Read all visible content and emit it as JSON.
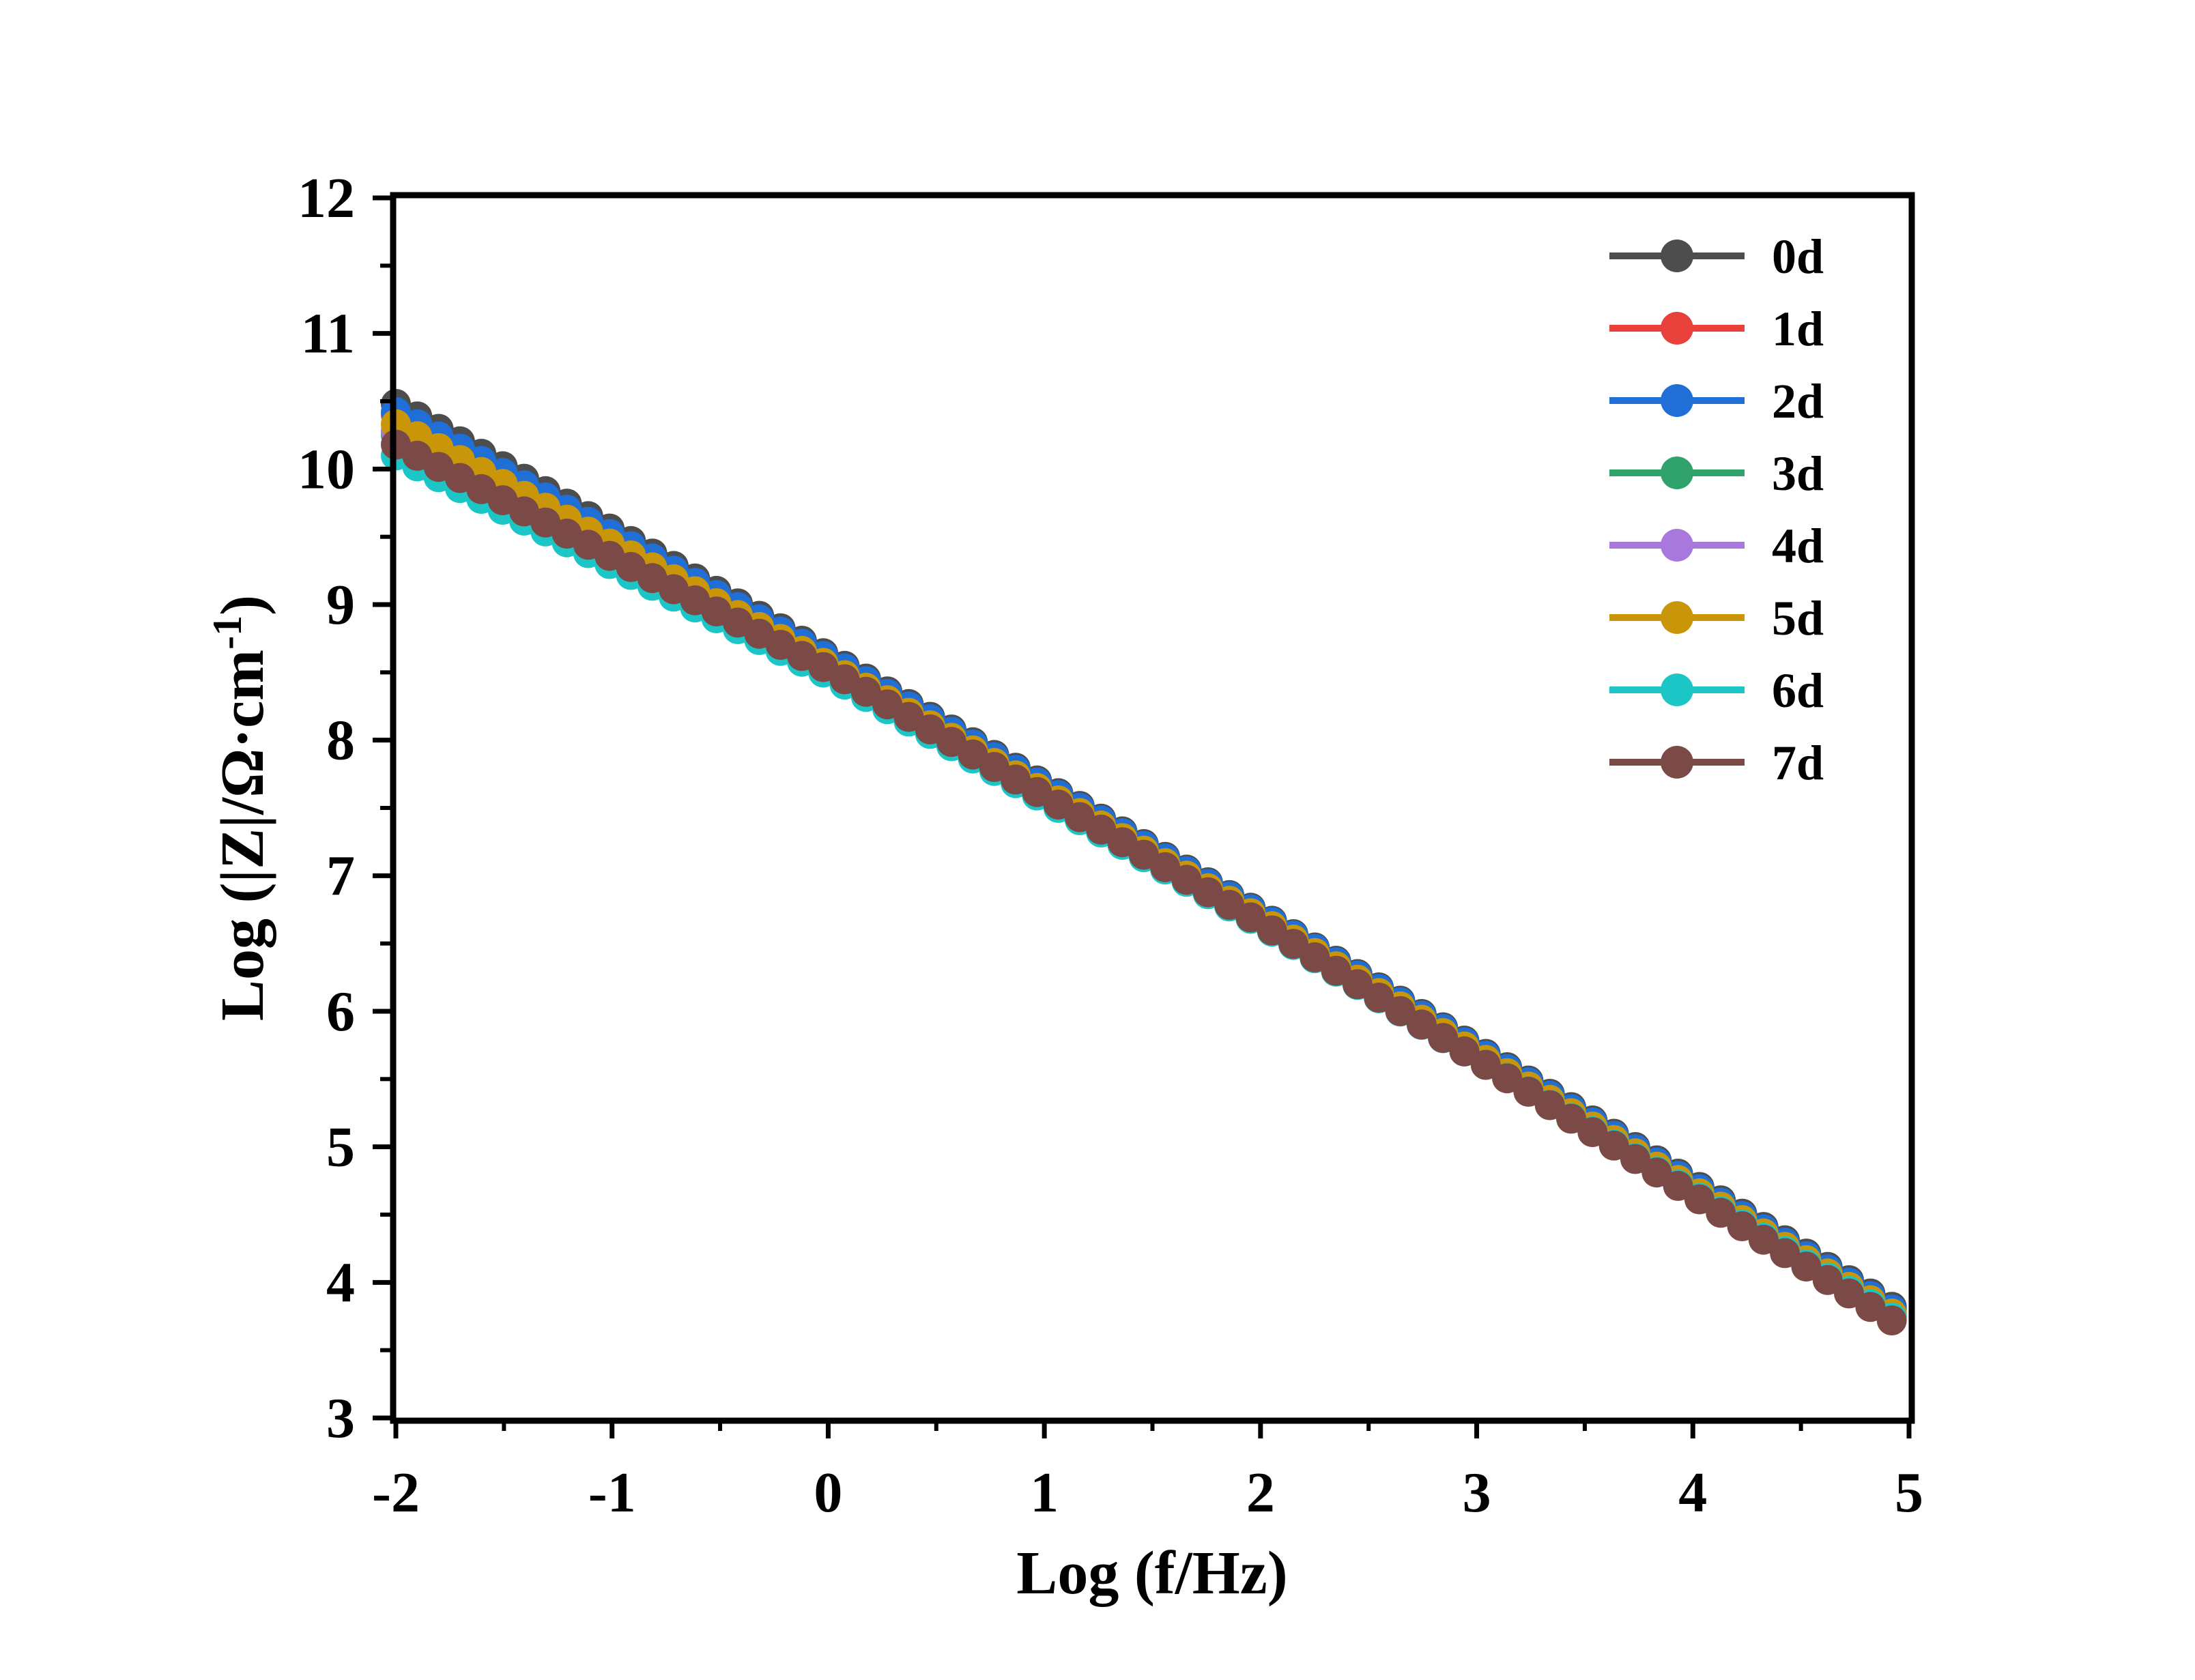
{
  "chart_data": {
    "type": "line",
    "xlabel": "Log (f/Hz)",
    "ylabel": {
      "main": "Log (|Z|/Ω·cm",
      "superscript": "-1",
      "close": ")"
    },
    "xlim": [
      -2,
      5
    ],
    "ylim": [
      3,
      12
    ],
    "x_ticks": [
      "-2",
      "-1",
      "0",
      "1",
      "2",
      "3",
      "4",
      "5"
    ],
    "y_ticks": [
      "3",
      "4",
      "5",
      "6",
      "7",
      "8",
      "9",
      "10",
      "11",
      "12"
    ],
    "legend_position": "top-right",
    "markers": "filled circles on every data point",
    "x_range_of_data": [
      -2,
      4.92
    ],
    "series": [
      {
        "name": "0d",
        "color": "#4d4d4d",
        "x": [
          -2,
          0,
          2,
          4.92
        ],
        "y": [
          10.48,
          8.62,
          6.72,
          3.82
        ]
      },
      {
        "name": "1d",
        "color": "#e8403a",
        "x": [
          -2,
          0,
          2,
          4.92
        ],
        "y": [
          10.4,
          8.58,
          6.7,
          3.78
        ]
      },
      {
        "name": "2d",
        "color": "#1f6fd6",
        "x": [
          -2,
          0,
          2,
          4.92
        ],
        "y": [
          10.42,
          8.6,
          6.71,
          3.8
        ]
      },
      {
        "name": "3d",
        "color": "#2fa36b",
        "x": [
          -2,
          0,
          2,
          4.92
        ],
        "y": [
          10.25,
          8.52,
          6.66,
          3.75
        ]
      },
      {
        "name": "4d",
        "color": "#a878dc",
        "x": [
          -2,
          0,
          2,
          4.92
        ],
        "y": [
          10.28,
          8.54,
          6.67,
          3.76
        ]
      },
      {
        "name": "5d",
        "color": "#c9960a",
        "x": [
          -2,
          0,
          2,
          4.92
        ],
        "y": [
          10.33,
          8.55,
          6.68,
          3.77
        ]
      },
      {
        "name": "6d",
        "color": "#1cc6c6",
        "x": [
          -2,
          0,
          2,
          4.92
        ],
        "y": [
          10.1,
          8.48,
          6.64,
          3.74
        ]
      },
      {
        "name": "7d",
        "color": "#7b4a46",
        "x": [
          -2,
          0,
          2,
          4.92
        ],
        "y": [
          10.18,
          8.52,
          6.65,
          3.72
        ]
      }
    ]
  }
}
